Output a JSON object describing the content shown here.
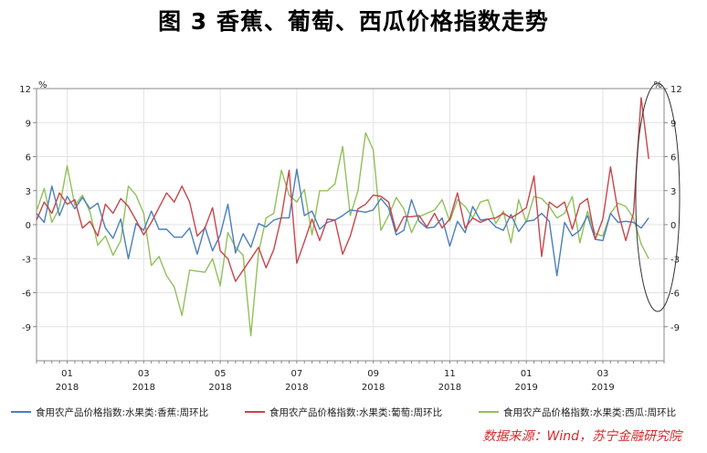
{
  "title": "图 3   香蕉、葡萄、西瓜价格指数走势",
  "source": "数据来源：Wind，苏宁金融研究院",
  "colors": {
    "banana": "#4a7fbd",
    "grape": "#c8464b",
    "watermelon": "#92c05a",
    "axis": "#888888",
    "grid": "#e3e3e3"
  },
  "chart_data": {
    "type": "line",
    "ylabel_left": "%",
    "ylabel_right": "%",
    "ylim": [
      -12,
      12
    ],
    "yticks": [
      -9,
      -6,
      -3,
      0,
      3,
      6,
      9,
      12
    ],
    "xlim": [
      0,
      82
    ],
    "xticks": [
      {
        "x": 4,
        "month": "01",
        "year": "2018"
      },
      {
        "x": 14,
        "month": "03",
        "year": "2018"
      },
      {
        "x": 24,
        "month": "05",
        "year": "2018"
      },
      {
        "x": 34,
        "month": "07",
        "year": "2018"
      },
      {
        "x": 44,
        "month": "09",
        "year": "2018"
      },
      {
        "x": 54,
        "month": "11",
        "year": "2018"
      },
      {
        "x": 64,
        "month": "01",
        "year": "2019"
      },
      {
        "x": 74,
        "month": "03",
        "year": "2019"
      }
    ],
    "series": [
      {
        "name": "食用农产品价格指数:水果类:香蕉:周环比",
        "color": "#4a7fbd",
        "values": [
          1.0,
          0.2,
          3.4,
          0.8,
          2.5,
          1.4,
          2.4,
          1.4,
          1.9,
          -0.3,
          -1.2,
          0.5,
          -3.0,
          0.1,
          -0.5,
          1.2,
          -0.4,
          -0.4,
          -1.1,
          -1.1,
          -0.3,
          -2.6,
          -0.2,
          -2.3,
          -0.9,
          1.8,
          -2.5,
          -0.8,
          -2.0,
          0.1,
          -0.2,
          0.4,
          0.6,
          0.6,
          4.9,
          0.8,
          1.2,
          -0.4,
          0.2,
          0.4,
          0.8,
          1.3,
          1.2,
          1.1,
          1.3,
          2.3,
          1.5,
          -0.9,
          -0.5,
          2.2,
          0.3,
          -0.3,
          -0.2,
          0.6,
          -1.9,
          0.3,
          -0.7,
          1.6,
          0.4,
          0.5,
          -0.2,
          -0.5,
          0.9,
          -0.6,
          0.3,
          0.4,
          1.0,
          0.3,
          -4.5,
          0.2,
          -1.0,
          -0.5,
          0.8,
          -1.3,
          -1.4,
          1.0,
          0.2,
          0.3,
          0.2,
          -0.3,
          0.6
        ]
      },
      {
        "name": "食用农产品价格指数:水果类:葡萄:周环比",
        "color": "#c8464b",
        "values": [
          0.4,
          2.0,
          1.0,
          2.8,
          1.8,
          2.2,
          -0.3,
          0.3,
          -1.0,
          1.8,
          1.0,
          2.3,
          1.6,
          0.4,
          -0.9,
          0.2,
          1.5,
          2.8,
          2.0,
          3.4,
          2.0,
          -1.0,
          -0.3,
          1.5,
          -2.3,
          -3.0,
          -5.0,
          -4.0,
          -3.0,
          -2.0,
          -3.8,
          -2.2,
          0.7,
          4.8,
          -3.4,
          -1.5,
          0.5,
          -1.4,
          0.5,
          0.4,
          -2.6,
          -1.0,
          1.4,
          1.8,
          2.6,
          2.5,
          2.0,
          -0.6,
          0.7,
          0.7,
          0.8,
          -0.2,
          1.0,
          -0.3,
          0.5,
          2.8,
          -0.3,
          0.6,
          0.2,
          0.5,
          0.6,
          1.0,
          0.6,
          1.0,
          1.5,
          4.3,
          -2.8,
          2.0,
          1.5,
          2.0,
          -0.4,
          1.8,
          2.3,
          -1.3,
          0.5,
          5.1,
          1.1,
          -1.4,
          1.0,
          11.2,
          5.8
        ]
      },
      {
        "name": "食用农产品价格指数:水果类:西瓜:周环比",
        "color": "#92c05a",
        "values": [
          1.2,
          3.2,
          0.2,
          1.5,
          5.2,
          1.7,
          2.6,
          1.1,
          -1.8,
          -1.0,
          -2.7,
          -1.4,
          3.4,
          2.6,
          1.0,
          -3.6,
          -2.8,
          -4.5,
          -5.5,
          -8.0,
          -4.0,
          -4.1,
          -4.2,
          -3.0,
          -5.4,
          -0.7,
          -2.0,
          -2.7,
          -9.8,
          -2.5,
          0.6,
          1.0,
          4.8,
          2.6,
          2.0,
          3.1,
          -0.9,
          3.0,
          3.0,
          3.6,
          6.9,
          0.8,
          3.0,
          8.1,
          6.6,
          -0.5,
          0.8,
          2.4,
          1.4,
          -0.7,
          0.7,
          1.0,
          1.3,
          2.2,
          0.3,
          2.2,
          1.6,
          0.6,
          2.0,
          2.2,
          0.1,
          1.2,
          -1.6,
          2.2,
          0.2,
          2.5,
          2.3,
          1.6,
          0.6,
          1.0,
          2.5,
          -1.6,
          1.2,
          -0.8,
          -1.0,
          1.0,
          1.9,
          1.6,
          0.6,
          -1.7,
          -3.0
        ]
      }
    ]
  }
}
